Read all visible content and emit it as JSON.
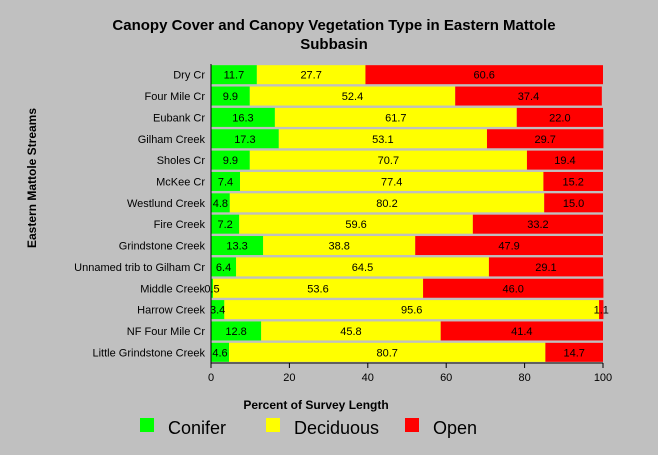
{
  "chart_data": {
    "type": "bar",
    "orientation": "horizontal",
    "stacked": true,
    "title": "Canopy Cover and Canopy Vegetation Type in Eastern Mattole Subbasin",
    "title_lines": [
      "Canopy Cover and Canopy Vegetation Type in Eastern Mattole",
      "Subbasin"
    ],
    "xlabel": "Percent of Survey Length",
    "ylabel": "Eastern Mattole Streams",
    "xlim": [
      0,
      100
    ],
    "xticks": [
      0,
      20,
      40,
      60,
      80,
      100
    ],
    "grid": false,
    "legend_position": "bottom",
    "categories": [
      "Dry Cr",
      "Four Mile Cr",
      "Eubank Cr",
      "Gilham Creek",
      "Sholes Cr",
      "McKee Cr",
      "Westlund Creek",
      "Fire Creek",
      "Grindstone Creek",
      "Unnamed trib to Gilham Cr",
      "Middle Creek",
      "Harrow Creek",
      "NF Four Mile Cr",
      "Little Grindstone Creek"
    ],
    "series": [
      {
        "name": "Conifer",
        "color": "#00ff00",
        "values": [
          11.7,
          9.9,
          16.3,
          17.3,
          9.9,
          7.4,
          4.8,
          7.2,
          13.3,
          6.4,
          0.5,
          3.4,
          12.8,
          4.6
        ],
        "labels": [
          "11.7",
          "9.9",
          "16.3",
          "17.3",
          "9.9",
          "7.4",
          "4.8",
          "7.2",
          "13.3",
          "6.4",
          "0.5",
          "3.4",
          "12.8",
          "4.6"
        ]
      },
      {
        "name": "Deciduous",
        "color": "#ffff00",
        "values": [
          27.7,
          52.4,
          61.7,
          53.1,
          70.7,
          77.4,
          80.2,
          59.6,
          38.8,
          64.5,
          53.6,
          95.6,
          45.8,
          80.7
        ],
        "labels": [
          "27.7",
          "52.4",
          "61.7",
          "53.1",
          "70.7",
          "77.4",
          "80.2",
          "59.6",
          "38.8",
          "64.5",
          "53.6",
          "95.6",
          "45.8",
          "80.7"
        ]
      },
      {
        "name": "Open",
        "color": "#ff0000",
        "values": [
          60.6,
          37.4,
          22.0,
          29.7,
          19.4,
          15.2,
          15.0,
          33.2,
          47.9,
          29.1,
          46.0,
          1.1,
          41.4,
          14.7
        ],
        "labels": [
          "60.6",
          "37.4",
          "22.0",
          "29.7",
          "19.4",
          "15.2",
          "15.0",
          "33.2",
          "47.9",
          "29.1",
          "46.0",
          "1.1",
          "41.4",
          "14.7"
        ]
      }
    ]
  }
}
